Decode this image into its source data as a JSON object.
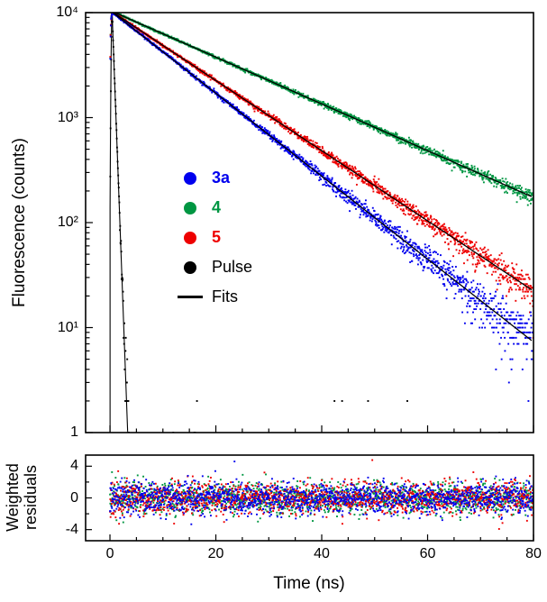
{
  "chart_data": {
    "type": "scatter",
    "description": "Time-resolved fluorescence decays on log scale with single-exponential fits and weighted residuals",
    "xlabel": "Time (ns)",
    "xlim": [
      -4.6,
      80
    ],
    "xticks": [
      0,
      20,
      40,
      60,
      80
    ],
    "xtick_labels": [
      "0",
      "20",
      "40",
      "60",
      "80"
    ],
    "x_minor_tick_step_ns": 5,
    "main_plot": {
      "ylabel": "Fluorescence (counts)",
      "yscale": "log",
      "ylim": [
        1,
        10000
      ],
      "ytick_values": [
        10000,
        1000,
        100,
        10,
        1
      ],
      "ytick_labels": [
        "10⁴",
        "10³",
        "10²",
        "10¹",
        "1"
      ],
      "peak_counts": 10000,
      "series": [
        {
          "name": "3a",
          "color": "#0000EE",
          "model": "single-exponential-decay",
          "amplitude_counts": 10500,
          "lifetime_ns": 11.0,
          "counts_at_80ns": 7
        },
        {
          "name": "4",
          "color": "#009642",
          "model": "single-exponential-decay",
          "amplitude_counts": 10500,
          "lifetime_ns": 19.5,
          "counts_at_80ns": 170
        },
        {
          "name": "5",
          "color": "#EE0000",
          "model": "single-exponential-decay",
          "amplitude_counts": 10500,
          "lifetime_ns": 13.0,
          "counts_at_80ns": 22
        },
        {
          "name": "Pulse",
          "color": "#000000",
          "model": "instrument-response",
          "peak_counts": 10000,
          "peak_time_ns": 0.4,
          "sigma_ns": 0.13,
          "tail_ns": 0.32
        }
      ],
      "fits": {
        "label": "Fits",
        "color": "#000000"
      }
    },
    "residuals_plot": {
      "ylabel": "Weighted residuals",
      "ylim": [
        -5.4,
        5.4
      ],
      "ytick_values": [
        4,
        0,
        -4
      ],
      "ytick_labels": [
        "4",
        "0",
        "-4"
      ],
      "mean": 0,
      "std": 1
    },
    "legend": {
      "entries": [
        {
          "label": "3a",
          "color": "#0000EE",
          "marker": "dot",
          "bold": true
        },
        {
          "label": "4",
          "color": "#009642",
          "marker": "dot",
          "bold": true
        },
        {
          "label": "5",
          "color": "#EE0000",
          "marker": "dot",
          "bold": true
        },
        {
          "label": "Pulse",
          "color": "#000000",
          "marker": "dot",
          "bold": false
        },
        {
          "label": "Fits",
          "color": "#000000",
          "marker": "line",
          "bold": false
        }
      ]
    }
  }
}
